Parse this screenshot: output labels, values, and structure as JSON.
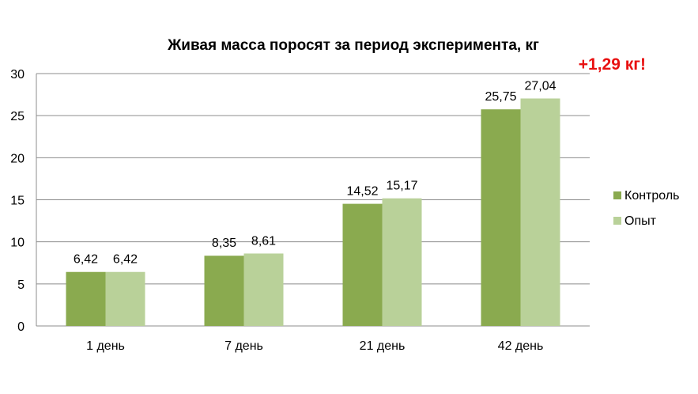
{
  "chart_data": {
    "type": "bar",
    "title": "Живая масса поросят за период эксперимента, кг",
    "annotation": "+1,29 кг!",
    "categories": [
      "1 день",
      "7 день",
      "21 день",
      "42 день"
    ],
    "series": [
      {
        "name": "Контроль",
        "values": [
          6.42,
          8.35,
          14.52,
          25.75
        ],
        "labels": [
          "6,42",
          "8,35",
          "14,52",
          "25,75"
        ],
        "color": "#8aaa4f"
      },
      {
        "name": "Опыт",
        "values": [
          6.42,
          8.61,
          15.17,
          27.04
        ],
        "labels": [
          "6,42",
          "8,61",
          "15,17",
          "27,04"
        ],
        "color": "#b9d199"
      }
    ],
    "yticks": [
      "0",
      "5",
      "10",
      "15",
      "20",
      "25",
      "30"
    ],
    "ylim": [
      0,
      30
    ],
    "grid": true,
    "legend": "right",
    "colors": {
      "annotation": "#e81010",
      "grid": "#8c8c8c"
    }
  }
}
